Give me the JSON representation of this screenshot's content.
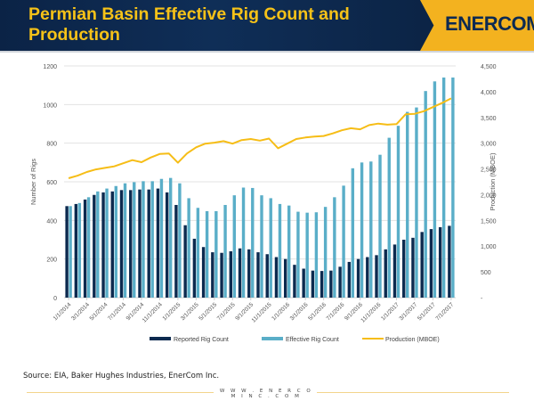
{
  "header": {
    "title": "Permian Basin Effective Rig Count and Production",
    "logo": "ENERCOM"
  },
  "footer": {
    "source": "Source: EIA, Baker Hughes Industries, EnerCom Inc.",
    "url": "W W W . E N E R C O M I N C . C O M"
  },
  "colors": {
    "reported": "#0c2a4f",
    "effective": "#5aaec8",
    "production": "#f6bd16",
    "header_bg": "#0f2e57",
    "accent": "#f3b21f"
  },
  "chart_data": {
    "type": "bar",
    "title": "Permian Basin Effective Rig Count and Production",
    "ylabel": "Number of Rigs",
    "y2label": "Production (MBOE)",
    "ylim": [
      0,
      1200
    ],
    "y2lim": [
      0,
      4500
    ],
    "yticks": [
      "0",
      "200",
      "400",
      "600",
      "800",
      "1000",
      "1200"
    ],
    "y2ticks": [
      "-",
      "500",
      "1,000",
      "1,500",
      "2,000",
      "2,500",
      "3,000",
      "3,500",
      "4,000",
      "4,500"
    ],
    "grid": true,
    "legend": "bottom",
    "categories": [
      "1/1/2014",
      "2/1/2014",
      "3/1/2014",
      "4/1/2014",
      "5/1/2014",
      "6/1/2014",
      "7/1/2014",
      "8/1/2014",
      "9/1/2014",
      "10/1/2014",
      "11/1/2014",
      "12/1/2014",
      "1/1/2015",
      "2/1/2015",
      "3/1/2015",
      "4/1/2015",
      "5/1/2015",
      "6/1/2015",
      "7/1/2015",
      "8/1/2015",
      "9/1/2015",
      "10/1/2015",
      "11/1/2015",
      "12/1/2015",
      "1/1/2016",
      "2/1/2016",
      "3/1/2016",
      "4/1/2016",
      "5/1/2016",
      "6/1/2016",
      "7/1/2016",
      "8/1/2016",
      "9/1/2016",
      "10/1/2016",
      "11/1/2016",
      "12/1/2016",
      "1/1/2017",
      "2/1/2017",
      "3/1/2017",
      "4/1/2017",
      "5/1/2017",
      "6/1/2017",
      "7/1/2017"
    ],
    "xtick_labels": [
      "1/1/2014",
      "3/1/2014",
      "5/1/2014",
      "7/1/2014",
      "9/1/2014",
      "11/1/2014",
      "1/1/2015",
      "3/1/2015",
      "5/1/2015",
      "7/1/2015",
      "9/1/2015",
      "11/1/2015",
      "1/1/2016",
      "3/1/2016",
      "5/1/2016",
      "7/1/2016",
      "9/1/2016",
      "11/1/2016",
      "1/1/2017",
      "3/1/2017",
      "5/1/2017",
      "7/1/2017"
    ],
    "series": [
      {
        "name": "Reported Rig Count",
        "axis": "left",
        "type": "bar",
        "values": [
          474,
          485,
          508,
          532,
          545,
          550,
          557,
          557,
          560,
          560,
          565,
          545,
          480,
          375,
          305,
          262,
          235,
          232,
          240,
          255,
          250,
          235,
          225,
          210,
          200,
          170,
          150,
          140,
          138,
          140,
          160,
          185,
          200,
          210,
          220,
          250,
          275,
          300,
          310,
          340,
          355,
          365,
          372
        ]
      },
      {
        "name": "Effective Rig Count",
        "axis": "left",
        "type": "bar",
        "values": [
          474,
          490,
          520,
          550,
          565,
          578,
          592,
          598,
          603,
          603,
          615,
          620,
          592,
          515,
          465,
          448,
          448,
          480,
          530,
          570,
          568,
          530,
          515,
          485,
          477,
          445,
          440,
          442,
          470,
          520,
          580,
          670,
          700,
          705,
          740,
          828,
          890,
          962,
          985,
          1070,
          1120,
          1140,
          1140
        ]
      },
      {
        "name": "Production (MBOE)",
        "axis": "right",
        "type": "line",
        "values": [
          2320,
          2370,
          2440,
          2490,
          2520,
          2550,
          2610,
          2670,
          2630,
          2720,
          2790,
          2800,
          2620,
          2800,
          2920,
          2990,
          3010,
          3040,
          2990,
          3060,
          3080,
          3050,
          3090,
          2900,
          2990,
          3080,
          3110,
          3130,
          3140,
          3190,
          3250,
          3290,
          3270,
          3350,
          3380,
          3360,
          3370,
          3560,
          3570,
          3620,
          3700,
          3780,
          3870
        ]
      }
    ]
  }
}
